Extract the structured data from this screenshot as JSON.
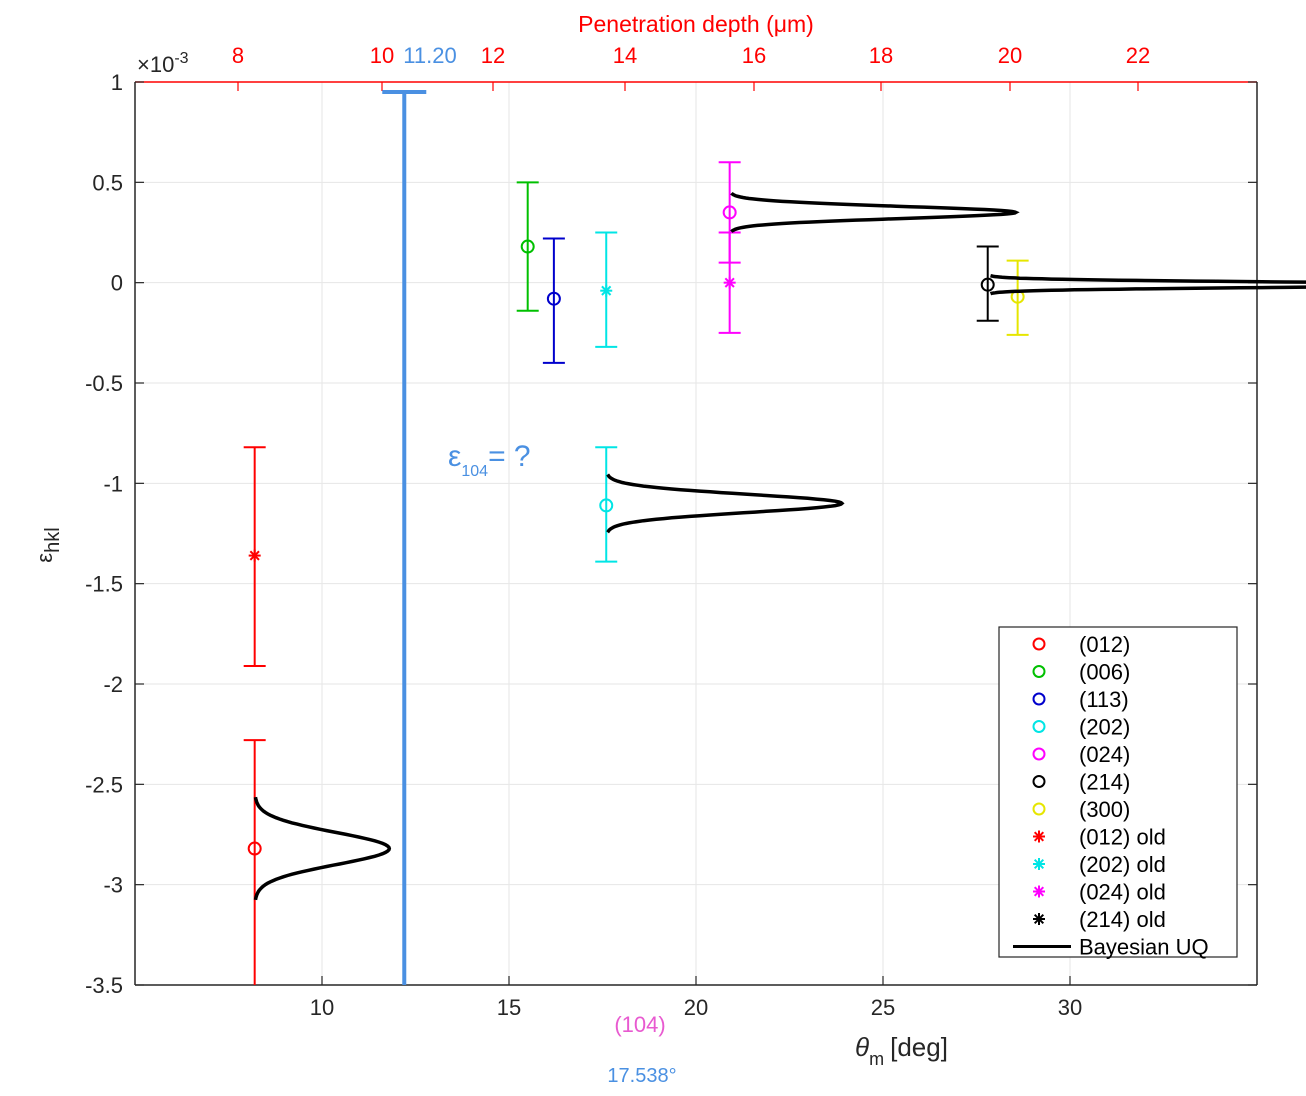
{
  "chart_data": {
    "type": "scatter",
    "title": "",
    "top_axis": {
      "label": "Penetration depth (μm)",
      "tick_labels": [
        "8",
        "10",
        "12",
        "14",
        "16",
        "18",
        "20",
        "22"
      ],
      "highlight_label": "11.20",
      "color": "#ff0000",
      "highlight_color": "#4a90e2"
    },
    "xlabel": "θ",
    "xlabel_sub": "m",
    "xlabel_unit": "[deg]",
    "xlim": [
      5,
      35
    ],
    "x_ticks": [
      10,
      15,
      20,
      25,
      30
    ],
    "ylabel": "ε",
    "ylabel_sub": "hkl",
    "ylim": [
      -3.5,
      1
    ],
    "y_ticks": [
      1,
      0.5,
      0,
      -0.5,
      -1,
      -1.5,
      -2,
      -2.5,
      -3,
      -3.5
    ],
    "y_tick_labels": [
      "1",
      "0.5",
      "0",
      "-0.5",
      "-1",
      "-1.5",
      "-2",
      "-2.5",
      "-3",
      "-3.5"
    ],
    "y_multiplier": "×10",
    "y_multiplier_exp": "-3",
    "grid": true,
    "legend_position": "bottom-right",
    "series": [
      {
        "name": "(012)",
        "marker": "circle",
        "color": "#ff0000",
        "points": [
          {
            "x": 8.2,
            "y": -2.82,
            "err_low": -3.5,
            "err_high": -2.28
          }
        ]
      },
      {
        "name": "(006)",
        "marker": "circle",
        "color": "#00c000",
        "points": [
          {
            "x": 15.5,
            "y": 0.18,
            "err_low": -0.14,
            "err_high": 0.5
          }
        ]
      },
      {
        "name": "(113)",
        "marker": "circle",
        "color": "#0000cc",
        "points": [
          {
            "x": 16.2,
            "y": -0.08,
            "err_low": -0.4,
            "err_high": 0.22
          }
        ]
      },
      {
        "name": "(202)",
        "marker": "circle",
        "color": "#00e5e5",
        "points": [
          {
            "x": 17.6,
            "y": -1.11,
            "err_low": -1.39,
            "err_high": -0.82
          }
        ]
      },
      {
        "name": "(024)",
        "marker": "circle",
        "color": "#ff00ff",
        "points": [
          {
            "x": 20.9,
            "y": 0.35,
            "err_low": 0.1,
            "err_high": 0.6
          }
        ]
      },
      {
        "name": "(214)",
        "marker": "circle",
        "color": "#000000",
        "points": [
          {
            "x": 27.8,
            "y": -0.01,
            "err_low": -0.19,
            "err_high": 0.18
          }
        ]
      },
      {
        "name": "(300)",
        "marker": "circle",
        "color": "#e6e600",
        "points": [
          {
            "x": 28.6,
            "y": -0.07,
            "err_low": -0.26,
            "err_high": 0.11
          }
        ]
      },
      {
        "name": "(012) old",
        "marker": "star",
        "color": "#ff0000",
        "points": [
          {
            "x": 8.2,
            "y": -1.36,
            "err_low": -1.91,
            "err_high": -0.82
          }
        ]
      },
      {
        "name": "(202) old",
        "marker": "star",
        "color": "#00e5e5",
        "points": [
          {
            "x": 17.6,
            "y": -0.04,
            "err_low": -0.32,
            "err_high": 0.25
          }
        ]
      },
      {
        "name": "(024) old",
        "marker": "star",
        "color": "#ff00ff",
        "points": [
          {
            "x": 20.9,
            "y": 0.0,
            "err_low": -0.25,
            "err_high": 0.25
          }
        ]
      },
      {
        "name": "(214) old",
        "marker": "star",
        "color": "#000000",
        "points": []
      },
      {
        "name": "Bayesian UQ",
        "marker": "line",
        "color": "#000000",
        "curves": [
          {
            "x": 8.2,
            "y": -2.82,
            "width": 0.08,
            "height": 1.6
          },
          {
            "x": 17.6,
            "y": -1.1,
            "width": 0.045,
            "height": 2.8
          },
          {
            "x": 20.9,
            "y": 0.35,
            "width": 0.03,
            "height": 3.4
          },
          {
            "x": 27.8,
            "y": -0.01,
            "width": 0.014,
            "height": 5.6
          }
        ]
      }
    ],
    "highlight_bar": {
      "label": "(104)",
      "angle": "17.538°",
      "x": 12.2,
      "y_top": 0.95,
      "y_bottom": -3.5,
      "color": "#4a90e2"
    },
    "annotation": {
      "symbol": "ε",
      "sub": "104",
      "text": "= ?",
      "color": "#4a90e2"
    }
  }
}
